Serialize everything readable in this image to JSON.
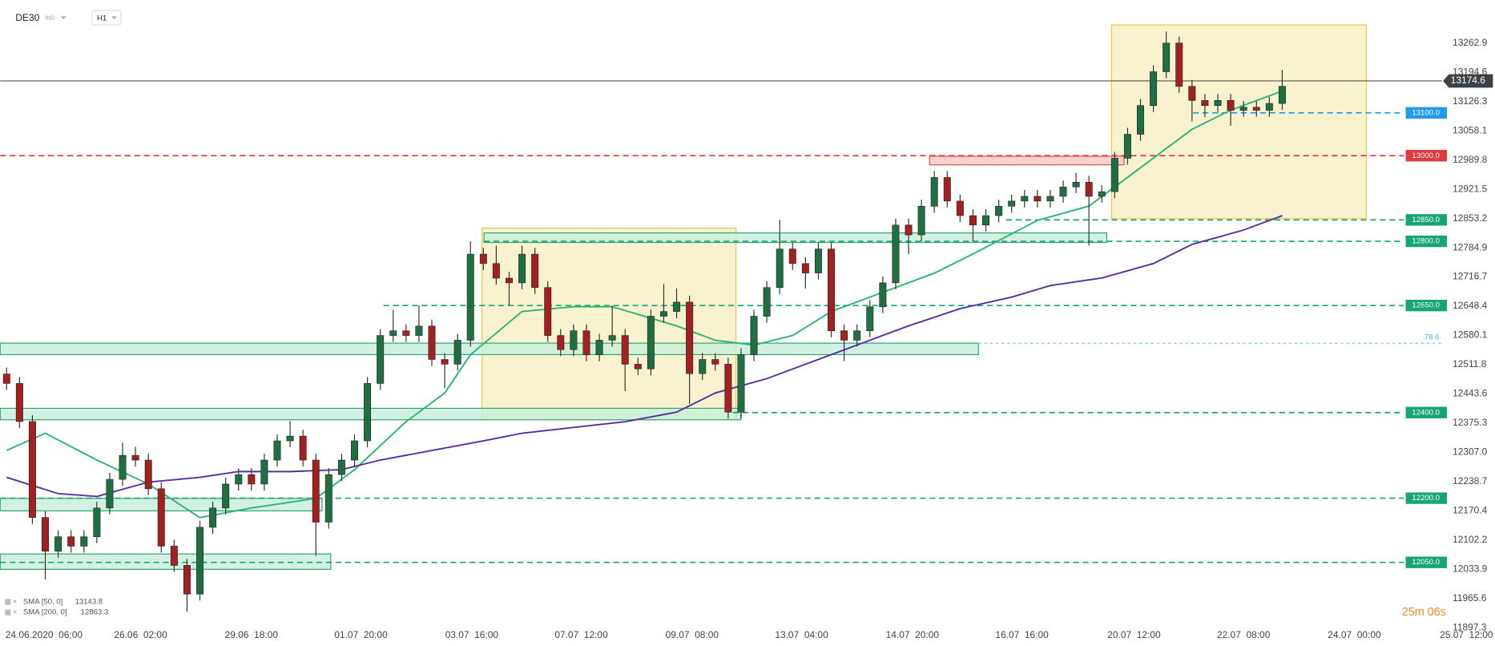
{
  "header": {
    "symbol": "DE30",
    "market": "IND",
    "timeframe": "H1"
  },
  "chart_data": {
    "type": "candlestick",
    "xlim": [
      -0.5,
      115.5
    ],
    "ylim": [
      11886.1,
      13363.6
    ],
    "up_color": "#1f6f43",
    "down_color": "#a32020",
    "xticks": [
      {
        "value": 2.9,
        "label": "24.06.2020  06:00"
      },
      {
        "value": 10.4,
        "label": "26.06  02:00"
      },
      {
        "value": 19,
        "label": "29.06  18:00"
      },
      {
        "value": 27.5,
        "label": "01.07  20:00"
      },
      {
        "value": 36.1,
        "label": "03.07  16:00"
      },
      {
        "value": 44.6,
        "label": "07.07  12:00"
      },
      {
        "value": 53.2,
        "label": "09.07  08:00"
      },
      {
        "value": 61.7,
        "label": "13.07  04:00"
      },
      {
        "value": 70.3,
        "label": "14.07  20:00"
      },
      {
        "value": 78.8,
        "label": "16.07  16:00"
      },
      {
        "value": 87.5,
        "label": "20.07  12:00"
      },
      {
        "value": 96,
        "label": "22.07  08:00"
      },
      {
        "value": 104.6,
        "label": "24.07  00:00"
      },
      {
        "value": 113.3,
        "label": "25.07  12:00"
      }
    ],
    "yticks": [
      13262.9,
      13194.6,
      13126.3,
      13058.1,
      12989.8,
      12921.5,
      12853.2,
      12784.9,
      12716.7,
      12648.4,
      12580.1,
      12511.8,
      12443.6,
      12375.3,
      {
        "value": 12307,
        "label": "12307.0"
      },
      12238.7,
      12170.4,
      12102.2,
      12033.9,
      11965.6,
      11897.3
    ],
    "ohlc": [
      [
        12490,
        12505,
        12453,
        12468
      ],
      [
        12468,
        12483,
        12364,
        12379
      ],
      [
        12379,
        12394,
        12140,
        12155
      ],
      [
        12155,
        12170,
        12010,
        12076
      ],
      [
        12076,
        12125,
        12061,
        12110
      ],
      [
        12110,
        12125,
        12073,
        12088
      ],
      [
        12088,
        12125,
        12073,
        12110
      ],
      [
        12110,
        12192,
        12095,
        12177
      ],
      [
        12177,
        12259,
        12162,
        12244
      ],
      [
        12244,
        12330,
        12229,
        12300
      ],
      [
        12300,
        12320,
        12274,
        12289
      ],
      [
        12289,
        12304,
        12207,
        12222
      ],
      [
        12222,
        12237,
        12073,
        12088
      ],
      [
        12088,
        12103,
        12028,
        12043
      ],
      [
        12043,
        12058,
        11935,
        11976
      ],
      [
        11976,
        12147,
        11961,
        12132
      ],
      [
        12132,
        12192,
        12117,
        12177
      ],
      [
        12177,
        12248,
        12162,
        12233
      ],
      [
        12233,
        12270,
        12218,
        12255
      ],
      [
        12255,
        12270,
        12218,
        12233
      ],
      [
        12233,
        12304,
        12218,
        12289
      ],
      [
        12289,
        12349,
        12274,
        12334
      ],
      [
        12334,
        12380,
        12319,
        12345
      ],
      [
        12345,
        12360,
        12274,
        12289
      ],
      [
        12289,
        12304,
        12065,
        12144
      ],
      [
        12144,
        12270,
        12129,
        12255
      ],
      [
        12255,
        12304,
        12240,
        12289
      ],
      [
        12289,
        12349,
        12274,
        12334
      ],
      [
        12334,
        12483,
        12319,
        12468
      ],
      [
        12468,
        12595,
        12453,
        12580
      ],
      [
        12580,
        12640,
        12565,
        12591
      ],
      [
        12591,
        12606,
        12565,
        12580
      ],
      [
        12580,
        12650,
        12565,
        12602
      ],
      [
        12602,
        12617,
        12509,
        12524
      ],
      [
        12524,
        12539,
        12457,
        12513
      ],
      [
        12513,
        12584,
        12498,
        12569
      ],
      [
        12569,
        12800,
        12554,
        12770
      ],
      [
        12770,
        12785,
        12733,
        12748
      ],
      [
        12748,
        12790,
        12699,
        12714
      ],
      [
        12714,
        12729,
        12650,
        12703
      ],
      [
        12703,
        12790,
        12688,
        12770
      ],
      [
        12770,
        12785,
        12677,
        12692
      ],
      [
        12692,
        12707,
        12565,
        12580
      ],
      [
        12580,
        12595,
        12532,
        12547
      ],
      [
        12547,
        12606,
        12532,
        12591
      ],
      [
        12591,
        12606,
        12520,
        12535
      ],
      [
        12535,
        12584,
        12520,
        12569
      ],
      [
        12569,
        12650,
        12554,
        12580
      ],
      [
        12580,
        12595,
        12450,
        12513
      ],
      [
        12513,
        12528,
        12487,
        12502
      ],
      [
        12502,
        12640,
        12487,
        12625
      ],
      [
        12625,
        12700,
        12610,
        12636
      ],
      [
        12636,
        12690,
        12620,
        12658
      ],
      [
        12658,
        12673,
        12420,
        12491
      ],
      [
        12491,
        12539,
        12476,
        12524
      ],
      [
        12524,
        12539,
        12498,
        12513
      ],
      [
        12513,
        12528,
        12386,
        12401
      ],
      [
        12401,
        12550,
        12386,
        12535
      ],
      [
        12535,
        12640,
        12520,
        12625
      ],
      [
        12625,
        12707,
        12610,
        12692
      ],
      [
        12692,
        12850,
        12677,
        12782
      ],
      [
        12782,
        12797,
        12733,
        12748
      ],
      [
        12748,
        12763,
        12690,
        12726
      ],
      [
        12726,
        12797,
        12711,
        12782
      ],
      [
        12782,
        12797,
        12576,
        12591
      ],
      [
        12591,
        12606,
        12520,
        12569
      ],
      [
        12569,
        12606,
        12554,
        12591
      ],
      [
        12591,
        12662,
        12576,
        12647
      ],
      [
        12647,
        12718,
        12632,
        12703
      ],
      [
        12703,
        12853,
        12688,
        12838
      ],
      [
        12838,
        12853,
        12770,
        12815
      ],
      [
        12815,
        12897,
        12800,
        12882
      ],
      [
        12882,
        12964,
        12867,
        12949
      ],
      [
        12949,
        12964,
        12879,
        12894
      ],
      [
        12894,
        12909,
        12845,
        12860
      ],
      [
        12860,
        12875,
        12800,
        12838
      ],
      [
        12838,
        12875,
        12823,
        12860
      ],
      [
        12860,
        12897,
        12845,
        12882
      ],
      [
        12882,
        12909,
        12867,
        12894
      ],
      [
        12894,
        12920,
        12879,
        12905
      ],
      [
        12905,
        12920,
        12879,
        12894
      ],
      [
        12894,
        12920,
        12879,
        12905
      ],
      [
        12905,
        12942,
        12890,
        12927
      ],
      [
        12927,
        12960,
        12912,
        12938
      ],
      [
        12938,
        12953,
        12790,
        12905
      ],
      [
        12905,
        12931,
        12890,
        12916
      ],
      [
        12916,
        13009,
        12901,
        12994
      ],
      [
        12994,
        13065,
        12979,
        13050
      ],
      [
        13050,
        13132,
        13035,
        13117
      ],
      [
        13117,
        13211,
        13102,
        13196
      ],
      [
        13196,
        13290,
        13181,
        13263
      ],
      [
        13263,
        13278,
        13147,
        13162
      ],
      [
        13162,
        13177,
        13080,
        13129
      ],
      [
        13129,
        13144,
        13090,
        13117
      ],
      [
        13117,
        13144,
        13102,
        13129
      ],
      [
        13129,
        13144,
        13070,
        13106
      ],
      [
        13106,
        13128,
        13091,
        13113
      ],
      [
        13113,
        13128,
        13091,
        13106
      ],
      [
        13106,
        13137,
        13091,
        13122
      ],
      [
        13122,
        13200,
        13107,
        13162
      ]
    ],
    "series": [
      {
        "name": "SMA [50, 0]",
        "last_value": 13143.8,
        "color": "#2bb673",
        "x": [
          0,
          3,
          7,
          11,
          15,
          19,
          24,
          27,
          31,
          34,
          36,
          40,
          44,
          47,
          52,
          55,
          58,
          61,
          64,
          68,
          72,
          75,
          80,
          84,
          86,
          89,
          92,
          95,
          99
        ],
        "values": [
          12311.4,
          12351.7,
          12289.0,
          12233.0,
          12154.7,
          12177.1,
          12199.5,
          12266.6,
          12378.6,
          12445.8,
          12535.3,
          12636.0,
          12647.2,
          12647.2,
          12602.4,
          12568.9,
          12557.7,
          12580.1,
          12636.0,
          12680.8,
          12725.6,
          12770.4,
          12848.7,
          12882.3,
          12927.1,
          12994.3,
          13061.5,
          13106.1,
          13150.9
        ]
      },
      {
        "name": "SMA [200, 0]",
        "last_value": 12863.3,
        "color": "#5a2ea6",
        "x": [
          0,
          4,
          7,
          11,
          15,
          18,
          22,
          26,
          29,
          33,
          37,
          40,
          44,
          48,
          52,
          55,
          59,
          63,
          66,
          70,
          74,
          78,
          81,
          85,
          89,
          92,
          96,
          99
        ],
        "values": [
          12248.7,
          12210.6,
          12203.9,
          12237.5,
          12248.7,
          12262.2,
          12262.2,
          12266.6,
          12289.0,
          12311.4,
          12333.8,
          12351.7,
          12365.1,
          12378.6,
          12400.9,
          12445.8,
          12479.3,
          12524.1,
          12557.7,
          12602.4,
          12642.7,
          12669.6,
          12696.5,
          12714.4,
          12748.0,
          12792.8,
          12826.3,
          12859.9
        ]
      }
    ],
    "levels": [
      {
        "value": 13100,
        "label": "13100.0",
        "color": "#1e9be9"
      },
      {
        "value": 13000,
        "label": "13000.0",
        "color": "#e0393e"
      },
      {
        "value": 12850,
        "label": "12850.0",
        "color": "#17a673"
      },
      {
        "value": 12800,
        "label": "12800.0",
        "color": "#17a673"
      },
      {
        "value": 12650,
        "label": "12650.0",
        "color": "#17a673"
      },
      {
        "value": 12400,
        "label": "12400.0",
        "color": "#17a673"
      },
      {
        "value": 12200,
        "label": "12200.0",
        "color": "#17a673"
      },
      {
        "value": 12050,
        "label": "12050.0",
        "color": "#17a673"
      }
    ],
    "fib": {
      "ratio": 78.6,
      "price": 12562
    },
    "last_price": 13174.6,
    "timer": "25m 06s"
  }
}
